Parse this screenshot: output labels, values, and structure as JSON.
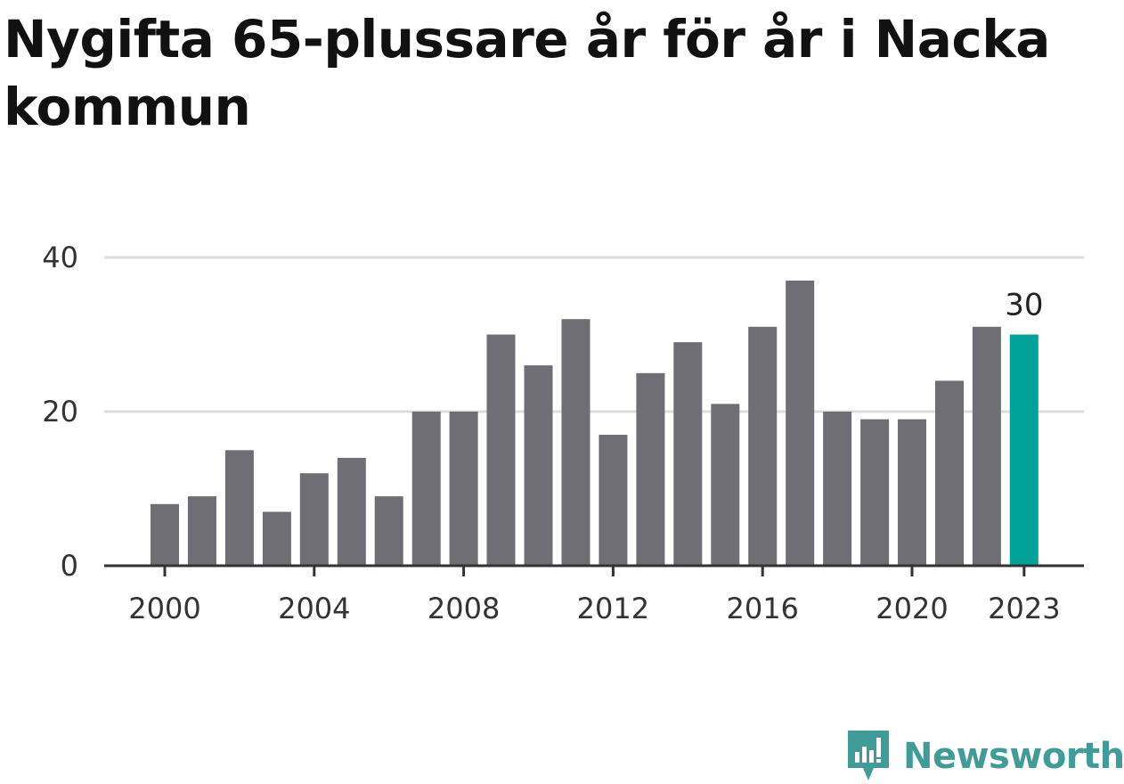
{
  "title": "Nygifta 65-plussare år för år i Nacka kommun",
  "chart_data": {
    "type": "bar",
    "title": "Nygifta 65-plussare år för år i Nacka kommun",
    "xlabel": "",
    "ylabel": "",
    "categories": [
      "2000",
      "2001",
      "2002",
      "2003",
      "2004",
      "2005",
      "2006",
      "2007",
      "2008",
      "2009",
      "2010",
      "2011",
      "2012",
      "2013",
      "2014",
      "2015",
      "2016",
      "2017",
      "2018",
      "2019",
      "2020",
      "2021",
      "2022",
      "2023"
    ],
    "values": [
      8,
      9,
      15,
      7,
      12,
      14,
      9,
      20,
      20,
      30,
      26,
      32,
      17,
      25,
      29,
      21,
      31,
      37,
      20,
      19,
      19,
      24,
      31,
      30
    ],
    "x_ticks": [
      "2000",
      "2004",
      "2008",
      "2012",
      "2016",
      "2020",
      "2023"
    ],
    "y_ticks": [
      0,
      20,
      40
    ],
    "ylim": [
      0,
      40
    ],
    "highlight": {
      "category": "2023",
      "label": "30"
    },
    "grid": true,
    "colors": {
      "bar": "#6f6e75",
      "highlight": "#00a39a",
      "grid": "#dddddd",
      "axis": "#333333",
      "text": "#333333"
    }
  },
  "brand": {
    "name": "Newsworthy",
    "icon": "newsworthy-logo-icon",
    "color": "#3f9c97"
  }
}
